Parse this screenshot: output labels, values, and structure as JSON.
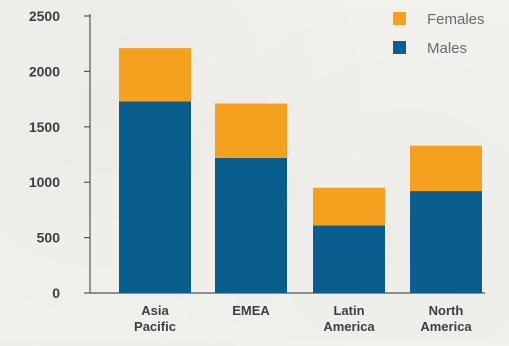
{
  "chart_data": {
    "type": "bar",
    "stacked": true,
    "categories": [
      [
        "Asia",
        "Pacific"
      ],
      [
        "EMEA"
      ],
      [
        "Latin",
        "America"
      ],
      [
        "North",
        "America"
      ]
    ],
    "series": [
      {
        "name": "Males",
        "color": "#0a5e8e",
        "values": [
          1730,
          1220,
          610,
          920
        ]
      },
      {
        "name": "Females",
        "color": "#f5a11f",
        "values": [
          480,
          490,
          340,
          410
        ]
      }
    ],
    "yticks": [
      0,
      500,
      1000,
      1500,
      2000,
      2500
    ],
    "ylim": [
      0,
      2500
    ],
    "title": "",
    "xlabel": "",
    "ylabel": "",
    "legend_position": "top-right",
    "grid": false,
    "axis_color": "#555555"
  }
}
